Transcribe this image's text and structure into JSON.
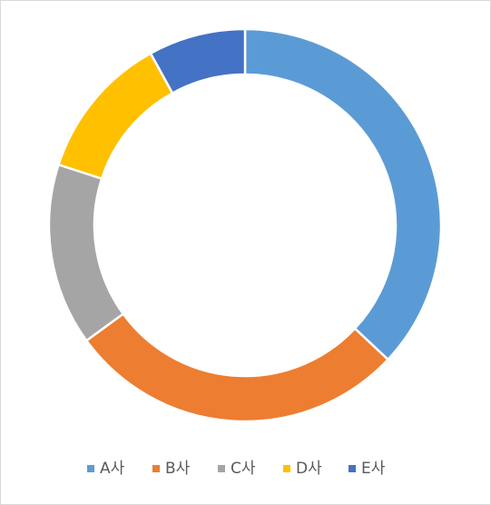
{
  "chart_data": {
    "type": "donut",
    "categories": [
      "A사",
      "B사",
      "C사",
      "D사",
      "E사"
    ],
    "values": [
      37,
      28,
      15,
      12,
      8
    ],
    "colors": [
      "#5b9bd5",
      "#ed7d31",
      "#a5a5a5",
      "#ffc000",
      "#4472c4"
    ],
    "legend": "bottom"
  }
}
